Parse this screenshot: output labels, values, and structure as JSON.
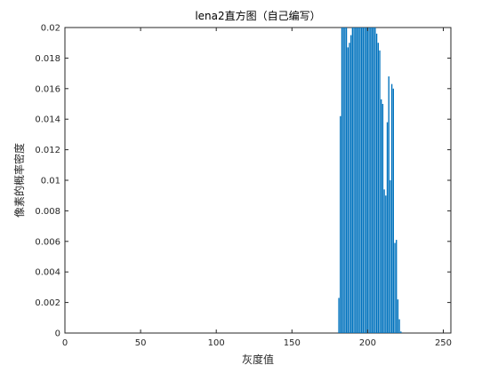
{
  "chart_data": {
    "type": "bar",
    "title": "lena2直方图（自己编写）",
    "xlabel": "灰度值",
    "ylabel": "像素的概率密度",
    "xlim": [
      0,
      255
    ],
    "ylim": [
      0,
      0.02
    ],
    "x_ticks": [
      "0",
      "50",
      "100",
      "150",
      "200",
      "250"
    ],
    "y_ticks": [
      "0",
      "0.002",
      "0.004",
      "0.006",
      "0.008",
      "0.01",
      "0.012",
      "0.014",
      "0.016",
      "0.018",
      "0.02"
    ],
    "grid": false,
    "bar_color": "#0072BD",
    "x": [
      181,
      182,
      183,
      184,
      185,
      186,
      187,
      188,
      189,
      190,
      191,
      192,
      193,
      194,
      195,
      196,
      197,
      198,
      199,
      200,
      201,
      202,
      203,
      204,
      205,
      206,
      207,
      208,
      209,
      210,
      211,
      212,
      213,
      214,
      215,
      216,
      217,
      218,
      219,
      220,
      221,
      222,
      223,
      224
    ],
    "values": [
      0.0023,
      0.0142,
      0.02,
      0.02,
      0.02,
      0.02,
      0.0187,
      0.019,
      0.0195,
      0.02,
      0.02,
      0.02,
      0.02,
      0.02,
      0.02,
      0.02,
      0.02,
      0.02,
      0.02,
      0.02,
      0.02,
      0.02,
      0.02,
      0.02,
      0.02,
      0.0196,
      0.019,
      0.0185,
      0.0153,
      0.015,
      0.0094,
      0.009,
      0.0138,
      0.0168,
      0.01,
      0.0163,
      0.016,
      0.0059,
      0.0061,
      0.0022,
      0.0009,
      0.0001,
      0,
      0
    ]
  }
}
